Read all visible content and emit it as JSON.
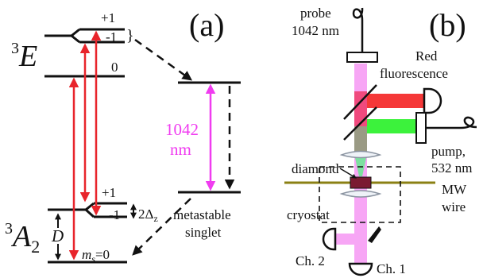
{
  "panel_a": {
    "label": "(a)",
    "excited_state": {
      "base": "3",
      "letter": "E"
    },
    "ground_state": {
      "base": "3",
      "letter": "A",
      "subscript": "2"
    },
    "excited_levels": {
      "plus1": "+1",
      "minus1": "-1",
      "zero": "0",
      "brace": "}"
    },
    "ground_levels": {
      "plus1": "+1",
      "minus1": "-1",
      "ms_prefix": "m",
      "ms_sub": "s",
      "ms_value": "=0"
    },
    "splitting": {
      "prefix": "2Δ",
      "sub": "z"
    },
    "zero_field": "D",
    "transition": {
      "value": "1042",
      "unit": "nm"
    },
    "singlet": {
      "line1": "metastable",
      "line2": "singlet"
    }
  },
  "panel_b": {
    "label": "(b)",
    "probe": {
      "line1": "probe",
      "line2": "1042 nm"
    },
    "red_fluorescence": {
      "line1": "Red",
      "line2": "fluorescence"
    },
    "pump": {
      "line1": "pump,",
      "line2": "532 nm"
    },
    "diamond": "diamond",
    "mw_wire": {
      "line1": "MW",
      "line2": "wire"
    },
    "cryostat": "cryostat",
    "ch2": "Ch. 2",
    "ch1": "Ch. 1"
  },
  "colors": {
    "red_arrow": "#e8242b",
    "magenta_arrow": "#f03cf0",
    "probe_beam": "#f7a6f5",
    "red_beam": "#f53838",
    "green_beam": "#3cf23c",
    "wire": "#8b8014"
  }
}
